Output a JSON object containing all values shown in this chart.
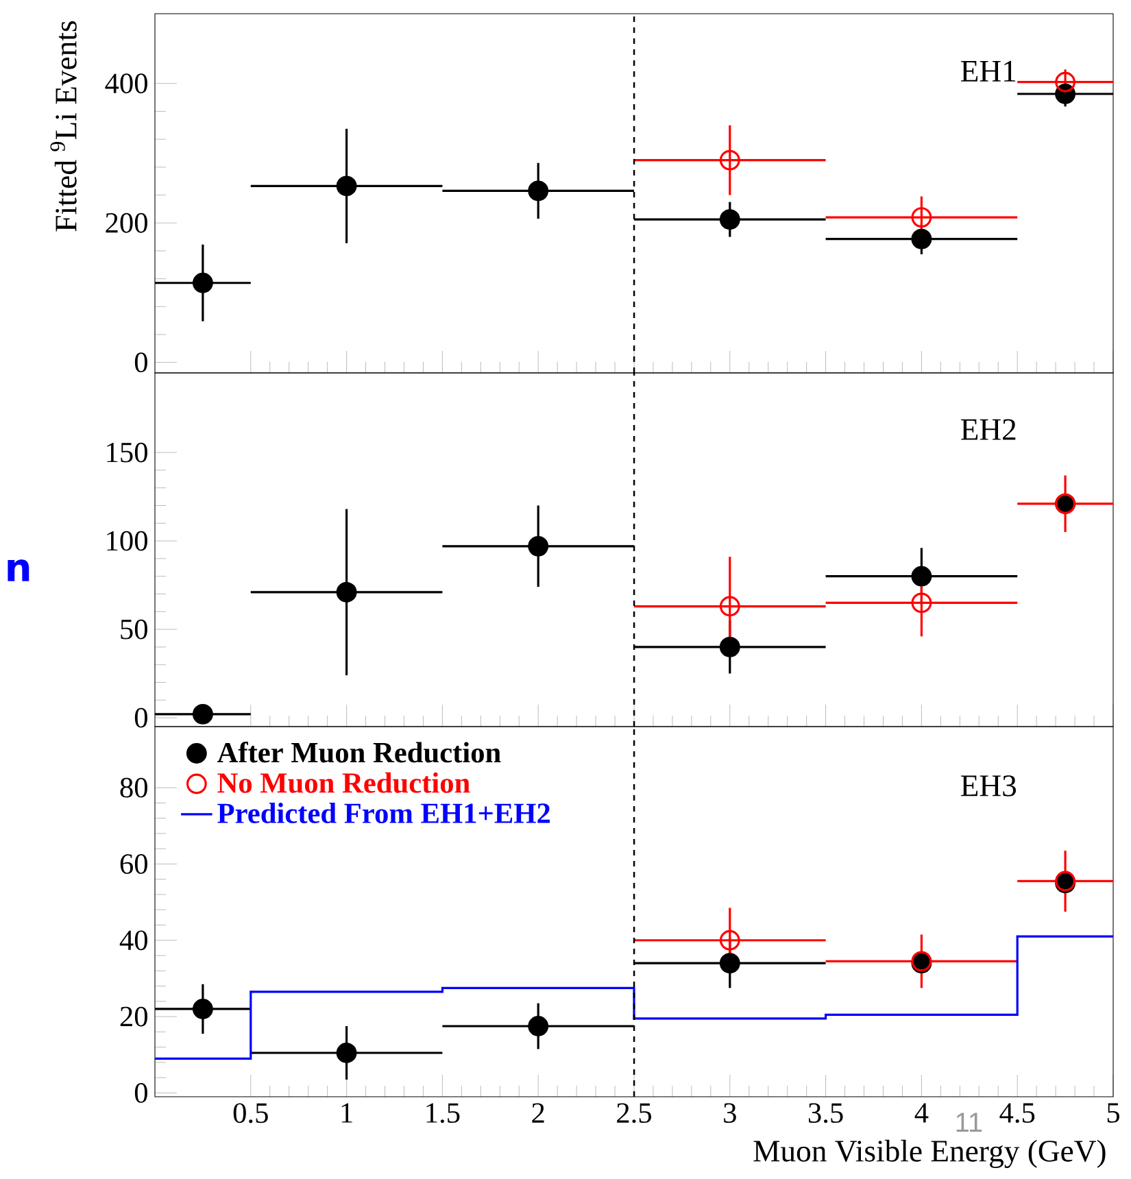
{
  "chart_data": [
    {
      "type": "scatter",
      "ylabel": "Fitted $^{9}$Li Events",
      "annotations": [
        "EH1"
      ],
      "x": [
        0.25,
        1,
        2,
        3,
        4,
        4.75
      ],
      "series": [
        {
          "color": "#000000",
          "marker": "circle",
          "values": [
            114,
            253,
            246,
            205,
            177,
            385
          ],
          "errors": [
            55,
            82,
            40,
            25,
            22,
            18
          ],
          "xerrors": [
            0.25,
            0.5,
            0.5,
            0.5,
            0.5,
            0.25
          ]
        },
        {
          "color": "#ff0000",
          "marker": "circle",
          "values": [
            null,
            null,
            null,
            290,
            208,
            402
          ],
          "errors": [
            null,
            null,
            null,
            50,
            30,
            18
          ],
          "xerrors": [
            null,
            null,
            null,
            0.5,
            0.5,
            0.25
          ]
        }
      ],
      "xlim": [
        0,
        5
      ],
      "xticks": [
        0.5,
        1,
        1.5,
        2,
        2.5,
        3,
        3.5,
        4,
        4.5,
        5
      ],
      "ylim": [
        -15,
        500
      ],
      "yticks": [
        0,
        200,
        400
      ],
      "tick_labels": "y",
      "ref_lines": [
        {
          "axis": "x",
          "value": 2.5,
          "color": "#000000",
          "line_style": "dashed"
        }
      ]
    },
    {
      "type": "scatter",
      "annotations": [
        "EH2",
        "n"
      ],
      "x": [
        0.25,
        1,
        2,
        3,
        4,
        4.75
      ],
      "series": [
        {
          "color": "#000000",
          "marker": "circle",
          "values": [
            2,
            71,
            97,
            40,
            80,
            121
          ],
          "errors": [
            3,
            47,
            23,
            15,
            16,
            null
          ],
          "xerrors": [
            0.25,
            0.5,
            0.5,
            0.5,
            0.5,
            null
          ]
        },
        {
          "color": "#ff0000",
          "marker": "circle",
          "values": [
            null,
            null,
            null,
            63,
            65,
            121
          ],
          "errors": [
            null,
            null,
            null,
            28,
            19,
            16
          ],
          "xerrors": [
            null,
            null,
            null,
            0.5,
            0.5,
            0.25
          ]
        }
      ],
      "xlim": [
        0,
        5
      ],
      "xticks": [
        0.5,
        1,
        1.5,
        2,
        2.5,
        3,
        3.5,
        4,
        4.5,
        5
      ],
      "ylim": [
        -5,
        195
      ],
      "yticks": [
        0,
        50,
        100,
        150
      ],
      "tick_labels": "y",
      "ref_lines": [
        {
          "axis": "x",
          "value": 2.5,
          "color": "#000000",
          "line_style": "dashed"
        }
      ]
    },
    {
      "type": "scatter",
      "xlabel": "Muon Visible Energy (GeV)",
      "annotations": [
        "EH3",
        "11"
      ],
      "x": [
        0.25,
        1,
        2,
        3,
        4,
        4.75
      ],
      "series": [
        {
          "name": "After Muon Reduction",
          "color": "#000000",
          "marker": "circle",
          "values": [
            22,
            10.5,
            17.5,
            34,
            34,
            55
          ],
          "errors": [
            6.5,
            7,
            6,
            6.5,
            null,
            null
          ],
          "xerrors": [
            0.25,
            0.5,
            0.5,
            0.5,
            null,
            null
          ]
        },
        {
          "name": "No Muon Reduction",
          "color": "#ff0000",
          "marker": "circle",
          "values": [
            null,
            null,
            null,
            40,
            34.5,
            55.5
          ],
          "errors": [
            null,
            null,
            null,
            8.5,
            7,
            8
          ],
          "xerrors": [
            null,
            null,
            null,
            0.5,
            0.5,
            0.25
          ]
        },
        {
          "name": "Predicted From EH1+EH2",
          "type": "step",
          "color": "#0000ff",
          "marker": "none",
          "x": [
            0,
            0.5,
            1.5,
            2.5,
            3.5,
            4.5,
            5
          ],
          "values": [
            9,
            26.5,
            27.5,
            19.5,
            20.5,
            41,
            41
          ]
        }
      ],
      "xlim": [
        0,
        5
      ],
      "xticks": [
        0.5,
        1,
        1.5,
        2,
        2.5,
        3,
        3.5,
        4,
        4.5,
        5
      ],
      "ylim": [
        -1,
        96
      ],
      "yticks": [
        0,
        20,
        40,
        60,
        80
      ],
      "legend": "top left",
      "ref_lines": [
        {
          "axis": "x",
          "value": 2.5,
          "color": "#000000",
          "line_style": "dashed"
        }
      ]
    }
  ]
}
